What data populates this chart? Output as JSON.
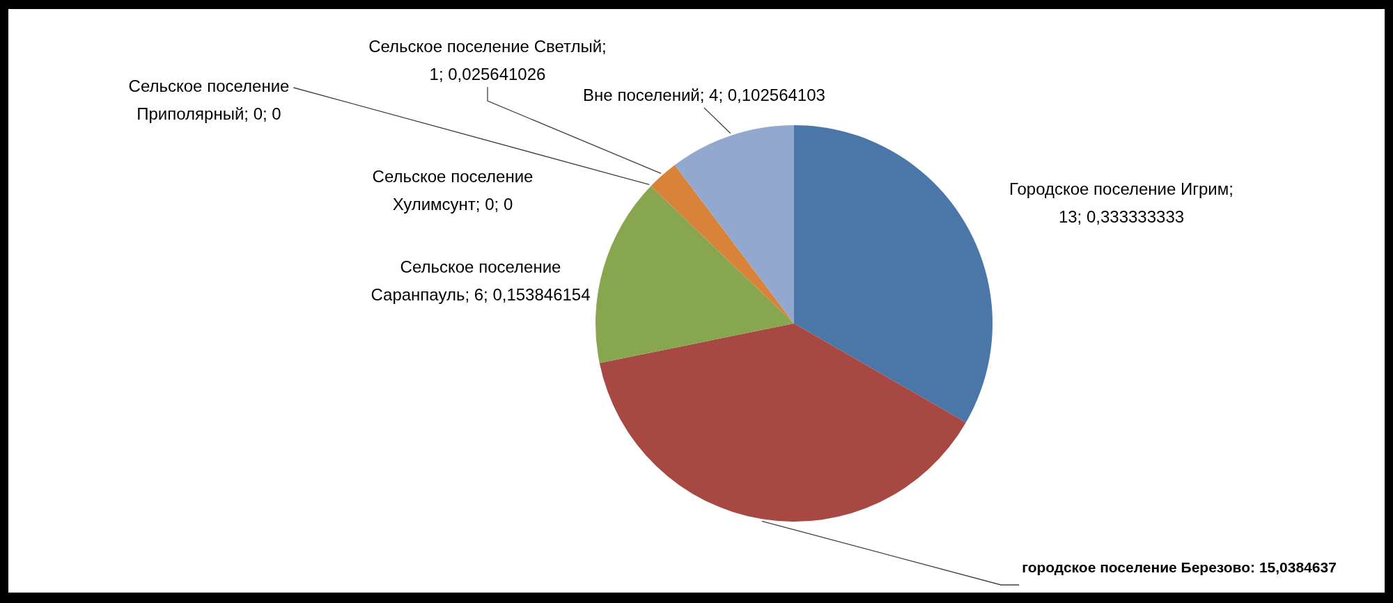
{
  "chart_data": {
    "type": "pie",
    "categories": [
      "Городское поселение Игрим",
      "городское поселение Березово",
      "Сельское поселение Саранпауль",
      "Сельское поселение Хулимсунт",
      "Сельское поселение Приполярный",
      "Сельское поселение Светлый",
      "Вне поселений"
    ],
    "values": [
      13,
      15,
      6,
      0,
      0,
      1,
      4
    ],
    "colors": [
      "#4a76a8",
      "#a84843",
      "#88a550",
      null,
      null,
      "#d9823a",
      "#93a8ce"
    ],
    "value_labels": [
      "; 13; 0,333333333",
      ": 15,0384637",
      "; 6; 0,153846154",
      "; 0; 0",
      "; 0; 0",
      "; 1; 0,025641026",
      "; 4; 0,102564103"
    ]
  }
}
